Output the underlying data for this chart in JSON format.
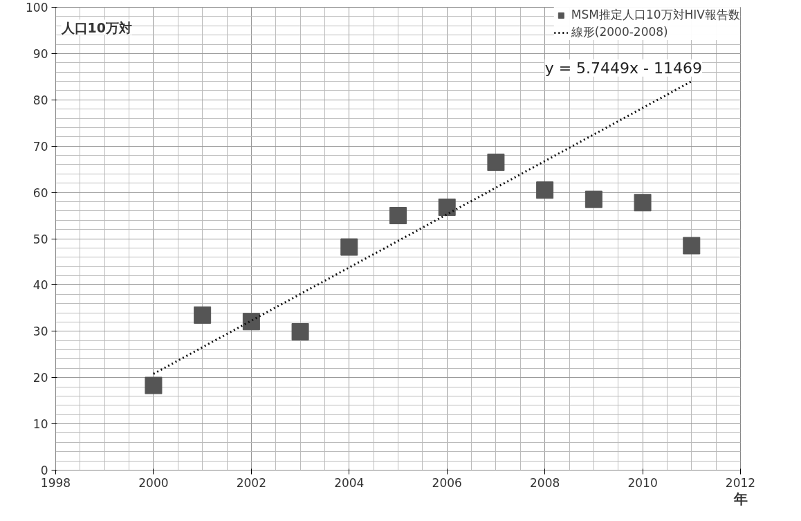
{
  "chart_data": {
    "type": "scatter",
    "xlabel": "年",
    "ylabel": "人口10万対",
    "x": [
      2000,
      2001,
      2002,
      2003,
      2004,
      2005,
      2006,
      2007,
      2008,
      2009,
      2010,
      2011
    ],
    "series": [
      {
        "name": "MSM推定人口10万対HIV報告数",
        "color": "#555555",
        "marker": "square",
        "values": [
          18.3,
          33.5,
          32.1,
          29.9,
          48.2,
          55,
          56.8,
          66.5,
          60.5,
          58.5,
          57.8,
          48.5
        ]
      },
      {
        "name": "線形(2000-2008)",
        "type": "line",
        "color": "#111111",
        "line_style": "dotted",
        "x": [
          2000,
          2011
        ],
        "values": [
          20.8,
          84.0
        ]
      }
    ],
    "annotations": [
      "y = 5.7449x - 11469"
    ],
    "xlim": [
      1998,
      2012
    ],
    "xticks": [
      1998,
      2000,
      2002,
      2004,
      2006,
      2008,
      2010,
      2012
    ],
    "ylim": [
      0,
      100
    ],
    "yticks": [
      0,
      10,
      20,
      30,
      40,
      50,
      60,
      70,
      80,
      90,
      100
    ],
    "grid": true,
    "legend": "top right"
  }
}
